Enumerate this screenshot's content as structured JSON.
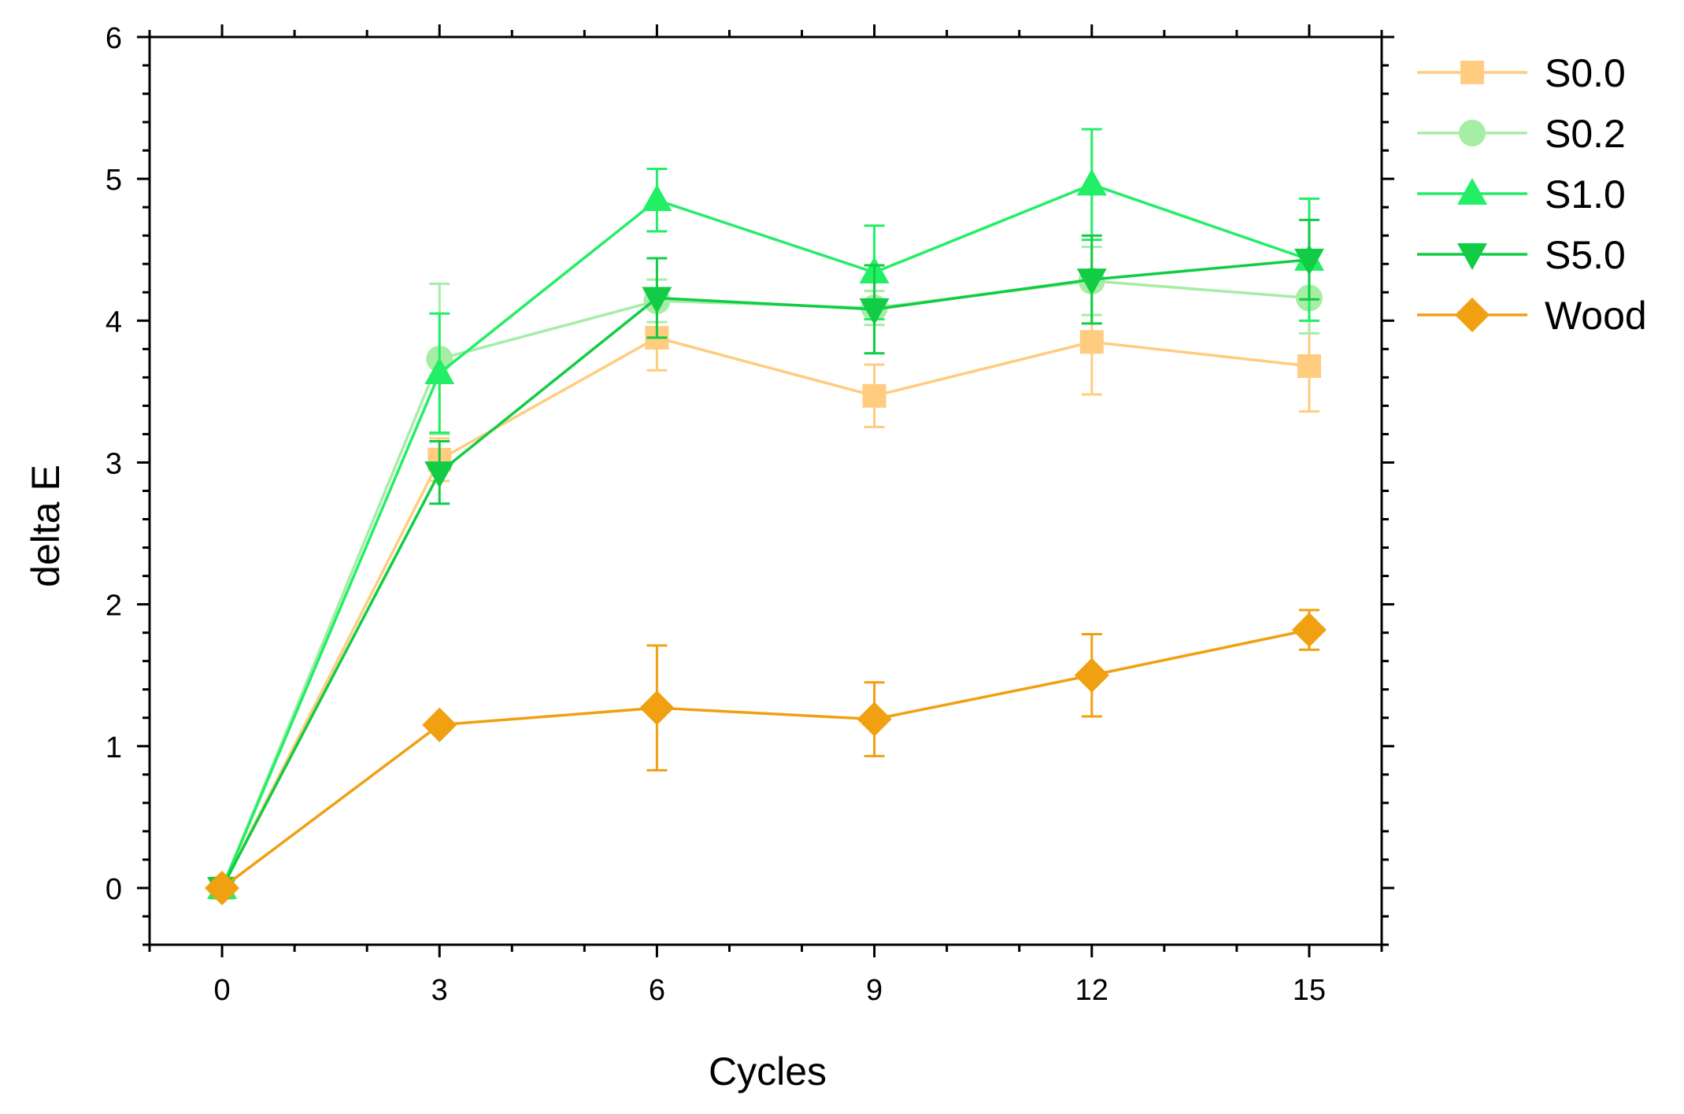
{
  "chart_data": {
    "type": "line",
    "title": "",
    "xlabel": "Cycles",
    "ylabel": "delta E",
    "x": [
      0,
      3,
      6,
      9,
      12,
      15
    ],
    "xlim": [
      -1,
      16
    ],
    "ylim": [
      -0.4,
      6
    ],
    "xticks": [
      0,
      3,
      6,
      9,
      12,
      15
    ],
    "yticks": [
      0,
      1,
      2,
      3,
      4,
      5,
      6
    ],
    "legend_position": "right-outside-top",
    "series": [
      {
        "name": "S0.0",
        "color": "#FFCC80",
        "marker": "square",
        "values": [
          0,
          3.02,
          3.88,
          3.47,
          3.85,
          3.68
        ],
        "errors": [
          0.05,
          0.15,
          0.23,
          0.22,
          0.37,
          0.32
        ]
      },
      {
        "name": "S0.2",
        "color": "#A6EDA6",
        "marker": "circle",
        "values": [
          0,
          3.73,
          4.14,
          4.09,
          4.28,
          4.16
        ],
        "errors": [
          0.05,
          0.53,
          0.15,
          0.12,
          0.24,
          0.25
        ]
      },
      {
        "name": "S1.0",
        "color": "#22EE66",
        "marker": "triangle-up",
        "values": [
          0,
          3.63,
          4.85,
          4.34,
          4.96,
          4.43
        ],
        "errors": [
          0.05,
          0.42,
          0.22,
          0.33,
          0.39,
          0.43
        ]
      },
      {
        "name": "S5.0",
        "color": "#11CC44",
        "marker": "triangle-down",
        "values": [
          0,
          2.93,
          4.16,
          4.08,
          4.29,
          4.43
        ],
        "errors": [
          0.05,
          0.22,
          0.28,
          0.31,
          0.31,
          0.28
        ]
      },
      {
        "name": "Wood",
        "color": "#F0A010",
        "marker": "diamond",
        "values": [
          0,
          1.15,
          1.27,
          1.19,
          1.5,
          1.82
        ],
        "errors": [
          0.05,
          0.02,
          0.44,
          0.26,
          0.29,
          0.14
        ]
      }
    ]
  }
}
